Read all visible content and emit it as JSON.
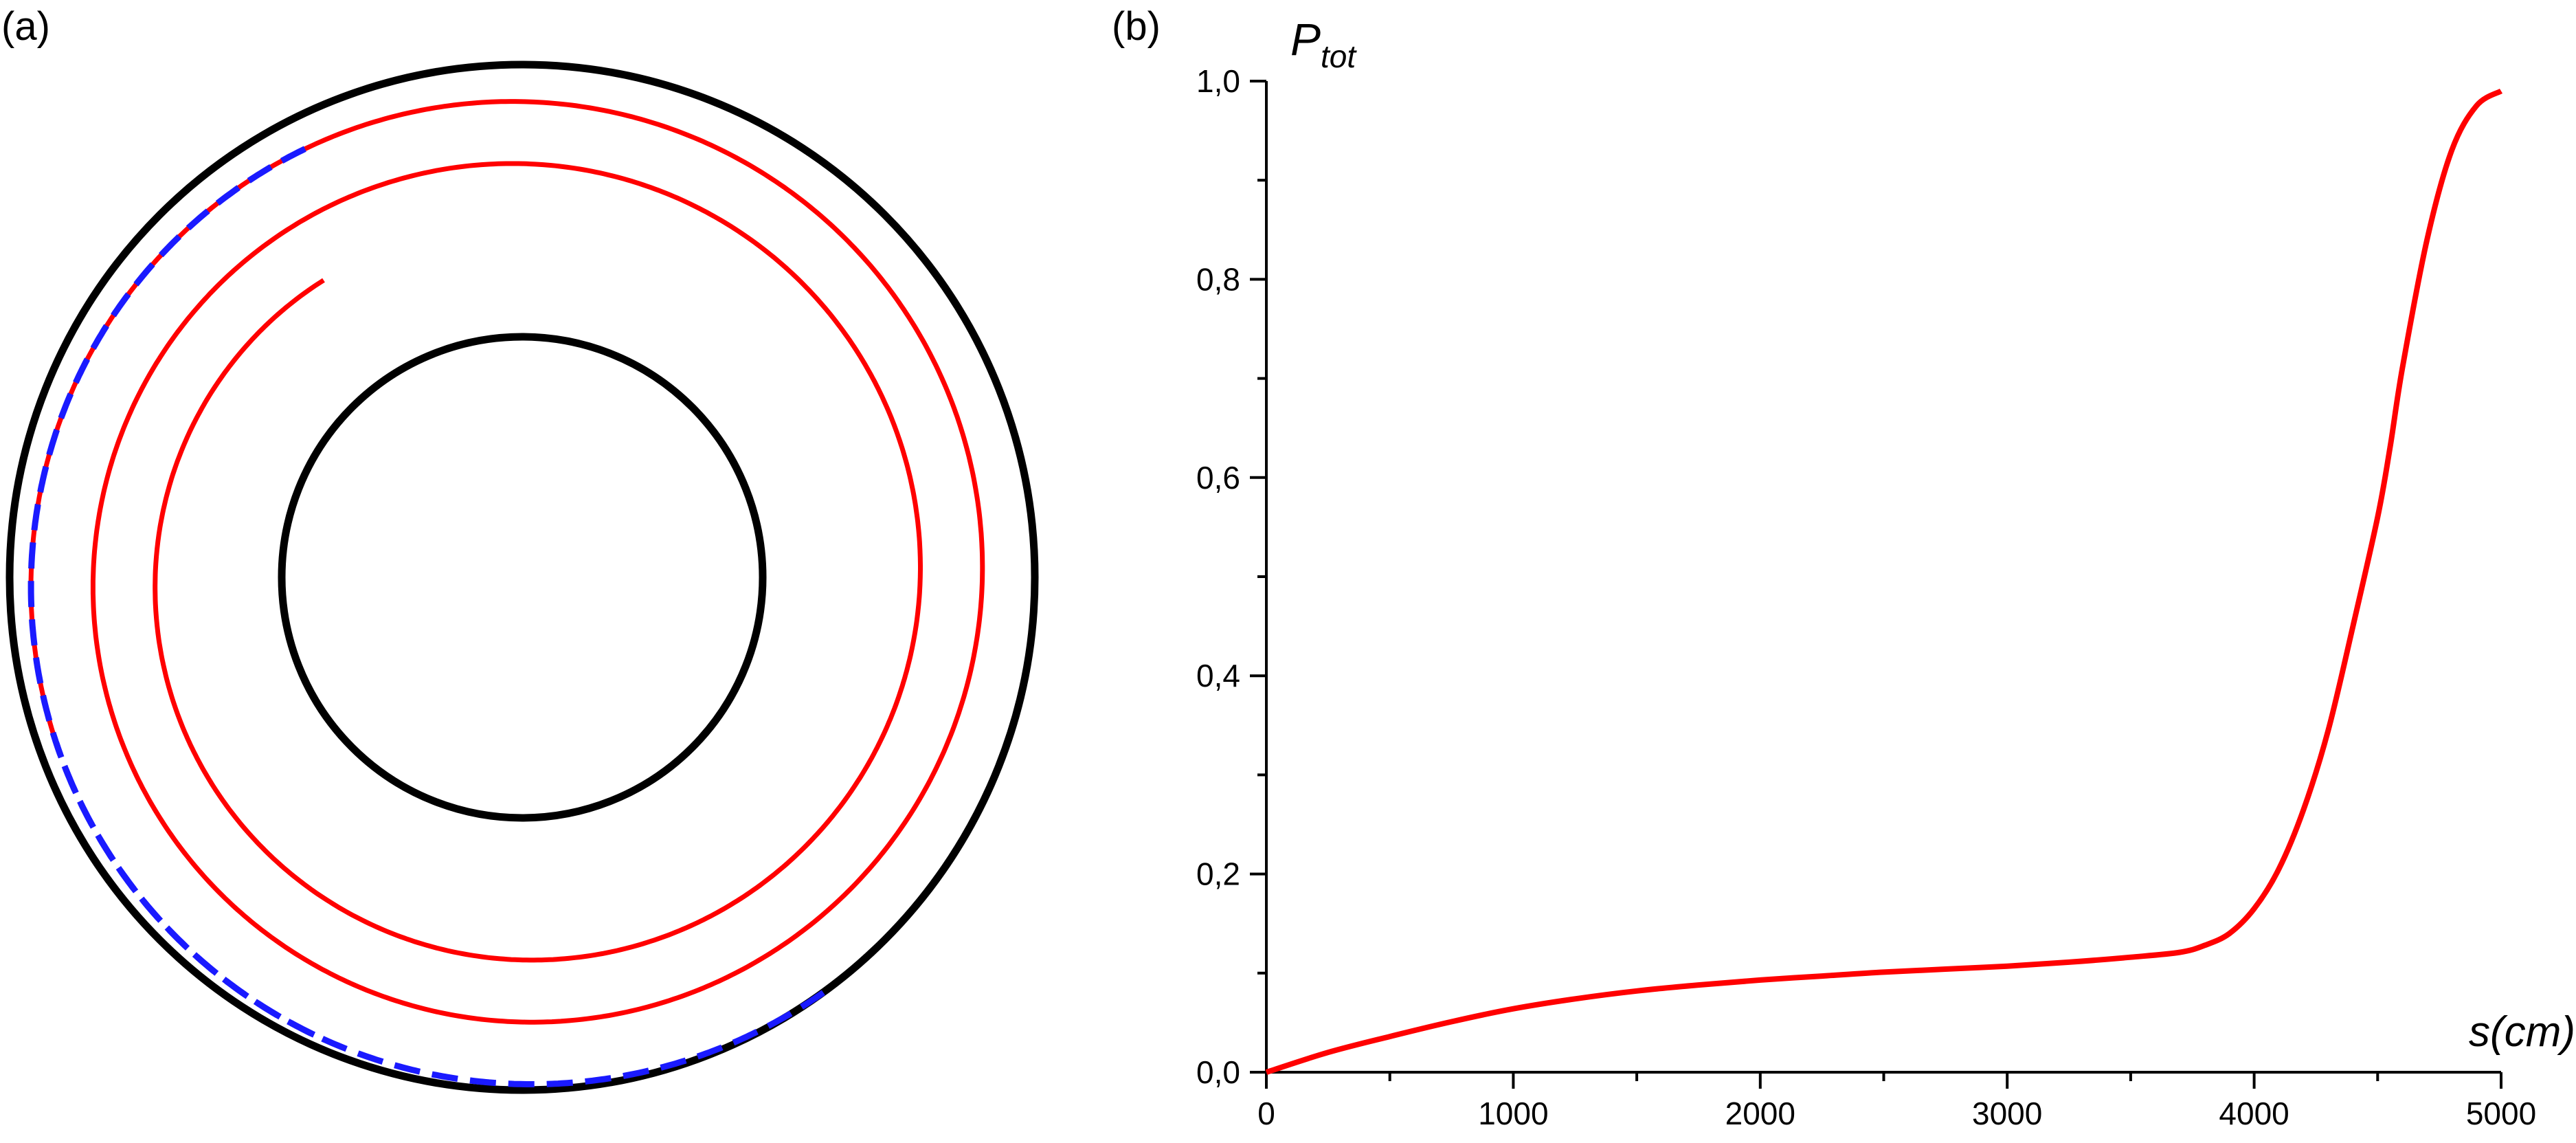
{
  "panel_a": {
    "label": "(a)",
    "line_color": "#000000",
    "spiral_color": "#ff0000",
    "dashed_color": "#1a1aff"
  },
  "chart_data": {
    "label": "(b)",
    "type": "line",
    "ylabel_main": "P",
    "ylabel_sub": "tot",
    "xlabel": "s(cm)",
    "xlim": [
      0,
      5000
    ],
    "ylim": [
      0,
      1.0
    ],
    "xticks": [
      0,
      1000,
      2000,
      3000,
      4000,
      5000
    ],
    "xtick_labels": [
      "0",
      "1000",
      "2000",
      "3000",
      "4000",
      "5000"
    ],
    "yticks": [
      0,
      0.2,
      0.4,
      0.6,
      0.8,
      1.0
    ],
    "ytick_labels": [
      "0,0",
      "0,2",
      "0,4",
      "0,6",
      "0,8",
      "1,0"
    ],
    "grid": false,
    "series": [
      {
        "color": "#ff0000",
        "x": [
          0,
          250,
          500,
          750,
          1000,
          1250,
          1500,
          1750,
          2000,
          2250,
          2500,
          2750,
          3000,
          3250,
          3500,
          3700,
          3800,
          3900,
          4000,
          4100,
          4200,
          4300,
          4400,
          4500,
          4550,
          4600,
          4700,
          4800,
          4900,
          5000
        ],
        "y": [
          0,
          0.02,
          0.036,
          0.051,
          0.064,
          0.074,
          0.082,
          0.088,
          0.093,
          0.097,
          0.101,
          0.104,
          0.107,
          0.111,
          0.116,
          0.121,
          0.128,
          0.14,
          0.165,
          0.205,
          0.265,
          0.345,
          0.45,
          0.56,
          0.63,
          0.71,
          0.84,
          0.93,
          0.975,
          0.99
        ]
      }
    ]
  }
}
